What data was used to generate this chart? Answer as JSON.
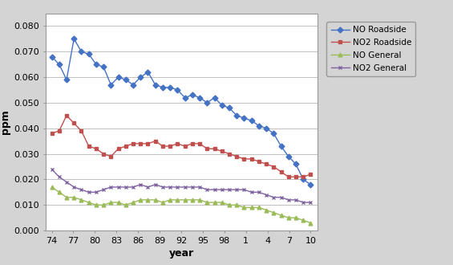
{
  "x_labels": [
    "74",
    "77",
    "80",
    "83",
    "86",
    "89",
    "92",
    "95",
    "98",
    "1",
    "4",
    "7",
    "10"
  ],
  "NO_roadside": [
    0.068,
    0.065,
    0.059,
    0.075,
    0.07,
    0.069,
    0.065,
    0.064,
    0.057,
    0.06,
    0.059,
    0.057,
    0.06,
    0.062,
    0.057,
    0.056,
    0.056,
    0.055,
    0.052,
    0.053,
    0.052,
    0.05,
    0.052,
    0.049,
    0.048,
    0.045,
    0.044,
    0.043,
    0.041,
    0.04,
    0.038,
    0.033,
    0.029,
    0.026,
    0.02,
    0.018
  ],
  "NO2_roadside": [
    0.038,
    0.039,
    0.045,
    0.042,
    0.039,
    0.033,
    0.032,
    0.03,
    0.029,
    0.032,
    0.033,
    0.034,
    0.034,
    0.034,
    0.035,
    0.033,
    0.033,
    0.034,
    0.033,
    0.034,
    0.034,
    0.032,
    0.032,
    0.031,
    0.03,
    0.029,
    0.028,
    0.028,
    0.027,
    0.026,
    0.025,
    0.023,
    0.021,
    0.021,
    0.021,
    0.022
  ],
  "NO_general": [
    0.017,
    0.015,
    0.013,
    0.013,
    0.012,
    0.011,
    0.01,
    0.01,
    0.011,
    0.011,
    0.01,
    0.011,
    0.012,
    0.012,
    0.012,
    0.011,
    0.012,
    0.012,
    0.012,
    0.012,
    0.012,
    0.011,
    0.011,
    0.011,
    0.01,
    0.01,
    0.009,
    0.009,
    0.009,
    0.008,
    0.007,
    0.006,
    0.005,
    0.005,
    0.004,
    0.003
  ],
  "NO2_general": [
    0.024,
    0.021,
    0.019,
    0.017,
    0.016,
    0.015,
    0.015,
    0.016,
    0.017,
    0.017,
    0.017,
    0.017,
    0.018,
    0.017,
    0.018,
    0.017,
    0.017,
    0.017,
    0.017,
    0.017,
    0.017,
    0.016,
    0.016,
    0.016,
    0.016,
    0.016,
    0.016,
    0.015,
    0.015,
    0.014,
    0.013,
    0.013,
    0.012,
    0.012,
    0.011,
    0.011
  ],
  "n_points": 36,
  "color_NO_roadside": "#4472C4",
  "color_NO2_roadside": "#C0504D",
  "color_NO_general": "#9BBB59",
  "color_NO2_general": "#8064A2",
  "ylabel": "ppm",
  "xlabel": "year",
  "ylim_min": 0.0,
  "ylim_max": 0.085,
  "yticks": [
    0.0,
    0.01,
    0.02,
    0.03,
    0.04,
    0.05,
    0.06,
    0.07,
    0.08
  ],
  "bg_color": "#D4D4D4",
  "plot_bg_color": "#FFFFFF",
  "grid_color": "#C0C0C0"
}
